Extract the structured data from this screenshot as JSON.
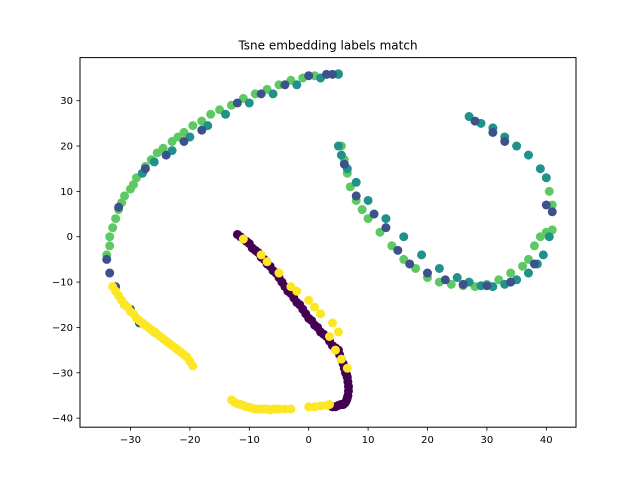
{
  "chart_data": {
    "type": "scatter",
    "title": "Tsne embedding labels match",
    "xlabel": "",
    "ylabel": "",
    "xlim": [
      -38.5,
      45
    ],
    "ylim": [
      -42,
      39.5
    ],
    "xticks": [
      -30,
      -20,
      -10,
      0,
      10,
      20,
      30,
      40
    ],
    "yticks": [
      -40,
      -30,
      -20,
      -10,
      0,
      10,
      20,
      30
    ],
    "xtick_labels": [
      "−30",
      "−20",
      "−10",
      "0",
      "10",
      "20",
      "30",
      "40"
    ],
    "ytick_labels": [
      "−40",
      "−30",
      "−20",
      "−10",
      "0",
      "10",
      "20",
      "30"
    ],
    "grid": false,
    "legend": "none",
    "colormap": "viridis",
    "colors": {
      "purple": "#440154",
      "indigo": "#3b528b",
      "teal": "#21918c",
      "green": "#5ec962",
      "yellow": "#fde725"
    },
    "series": [
      {
        "color": "#5ec962",
        "x": [
          -34,
          -33.5,
          -33.5,
          -33,
          -32.5,
          -32,
          -31.5,
          -31,
          -30,
          -29.5,
          -29,
          -28,
          -27.5,
          -26.5,
          -25.5,
          -24.5,
          -23,
          -22,
          -21,
          -19.5,
          -18,
          -16.5,
          -15,
          -13,
          -11,
          -9,
          -7,
          -5,
          -3,
          -1,
          1,
          3,
          5,
          5.5,
          6,
          6.5,
          7,
          8,
          9,
          10,
          12,
          14,
          16,
          18,
          20,
          22,
          24,
          26,
          28,
          30,
          32,
          34,
          36,
          37,
          38,
          39,
          40,
          41,
          41,
          40.5
        ],
        "y": [
          -4,
          -2,
          0,
          2,
          4,
          6,
          7.5,
          9,
          10.5,
          11.5,
          13,
          14,
          15.5,
          17,
          18.5,
          19.5,
          21,
          22,
          23,
          24.5,
          25.5,
          27,
          28,
          29,
          30.5,
          31.5,
          32.5,
          33.5,
          34.5,
          35,
          35.5,
          35.8,
          36,
          20,
          17,
          14,
          11,
          8,
          6,
          4,
          1,
          -2,
          -5,
          -7,
          -9,
          -10,
          -10.5,
          -10.8,
          -11,
          -10.5,
          -9.5,
          -8,
          -6.5,
          -5,
          -2,
          0,
          1,
          1.5,
          7,
          10
        ]
      },
      {
        "color": "#21918c",
        "x": [
          -28,
          -26,
          -23,
          -20,
          -17,
          -14,
          -10,
          -6,
          -2,
          2,
          5,
          5,
          5.5,
          6.5,
          8,
          10,
          13,
          16,
          19,
          22,
          25,
          27,
          29,
          31,
          33,
          35,
          37,
          38.5,
          39.5,
          40.5,
          40,
          39,
          37,
          35,
          33,
          31,
          29,
          27
        ],
        "y": [
          14,
          16.5,
          19,
          22,
          24.5,
          27,
          29.5,
          31.5,
          33.5,
          35,
          35.8,
          20,
          18,
          15,
          12,
          8,
          4,
          0,
          -4,
          -7,
          -9,
          -10,
          -10.8,
          -11,
          -10.5,
          -9.5,
          -8,
          -6,
          -4,
          0,
          13,
          15,
          18,
          20,
          22,
          24,
          25,
          26.5
        ]
      },
      {
        "color": "#3b528b",
        "x": [
          -34,
          -33.5,
          -32.5,
          -32,
          -31,
          -30,
          -28.5,
          -27.5,
          -26,
          -24,
          -21,
          -18,
          -12,
          -8,
          -4,
          0,
          3,
          4,
          6,
          8,
          11,
          13,
          15,
          17,
          20,
          23,
          26,
          30,
          34,
          38,
          40,
          41,
          33,
          31,
          28
        ],
        "y": [
          -5,
          -8,
          -11,
          6.5,
          -15,
          -16,
          -19,
          15,
          -21,
          18,
          21,
          23.5,
          29.5,
          31.5,
          33.5,
          35.5,
          35.8,
          35.8,
          16,
          9,
          5,
          2,
          -3,
          -6,
          -8,
          -9.5,
          -10.5,
          -10.8,
          -10,
          -6,
          7,
          5.5,
          21,
          23,
          25.5
        ]
      },
      {
        "color": "#440154",
        "x": [
          -12,
          -11.5,
          -11,
          -10.5,
          -10,
          -9.5,
          -9,
          -8.5,
          -8,
          -7.5,
          -7,
          -6.5,
          -6,
          -5.5,
          -5,
          -4.5,
          -4,
          -3.5,
          -3,
          -2.5,
          -2,
          -1.5,
          -1,
          -0.5,
          0,
          0.5,
          1,
          1.5,
          2,
          2.5,
          3,
          3.5,
          4,
          4.5,
          5,
          5.2,
          5.5,
          5.8,
          6,
          6.2,
          6.4,
          6.5,
          6.6,
          6.7,
          6.7,
          6.6,
          6.5,
          6.4,
          6.2,
          6,
          5.8,
          5.6,
          5.4,
          5,
          4.5,
          4
        ],
        "y": [
          0.5,
          0,
          -0.5,
          -1,
          -1.5,
          -2.5,
          -3,
          -3.5,
          -4.5,
          -5,
          -6,
          -6.5,
          -7.5,
          -8,
          -9,
          -10,
          -11,
          -12,
          -12.5,
          -13.5,
          -14.5,
          -15,
          -16,
          -17,
          -18,
          -18.5,
          -19.5,
          -20,
          -21,
          -21.5,
          -22,
          -23,
          -24,
          -24.5,
          -25,
          -26,
          -27,
          -28,
          -29,
          -30,
          -30.5,
          -31,
          -32,
          -33,
          -34,
          -35,
          -35.5,
          -36,
          -36.5,
          -36.8,
          -37,
          -37,
          -37,
          -37.2,
          -37.5,
          -37.5
        ]
      },
      {
        "color": "#fde725",
        "x": [
          -33,
          -32.5,
          -32,
          -31.5,
          -31,
          -30.5,
          -30,
          -29.5,
          -29,
          -28.5,
          -28,
          -27.5,
          -27,
          -26.5,
          -26,
          -25.5,
          -25,
          -24.5,
          -24,
          -23.5,
          -23,
          -22.5,
          -22,
          -21.5,
          -21,
          -20.5,
          -20,
          -19.5,
          -13,
          -12.5,
          -12,
          -11.5,
          -11,
          -10.5,
          -10,
          -9.5,
          -9,
          -8.5,
          -8,
          -7.5,
          -7,
          -6.5,
          -6,
          -5.5,
          -5,
          -4,
          -3,
          0,
          1,
          2,
          3,
          3.5,
          -11,
          -8,
          -7,
          -5,
          -3,
          -2,
          0,
          1,
          2,
          3.5,
          4.5,
          5.5,
          6.5,
          5,
          4
        ],
        "y": [
          -11,
          -12,
          -13,
          -14,
          -15,
          -15.5,
          -16.5,
          -17,
          -18,
          -18.5,
          -19,
          -19.5,
          -20,
          -20.5,
          -21,
          -21.5,
          -22,
          -22.5,
          -23,
          -23.5,
          -24,
          -24.5,
          -25,
          -25.5,
          -26,
          -26.5,
          -27.5,
          -28.5,
          -36,
          -36.5,
          -36.8,
          -37,
          -37.2,
          -37.5,
          -37.6,
          -37.8,
          -38,
          -38,
          -38,
          -38,
          -38,
          -38.2,
          -38,
          -38,
          -38,
          -38,
          -38,
          -37.5,
          -37.5,
          -37.3,
          -37.2,
          -37,
          -0.5,
          -4,
          -5.5,
          -8,
          -11,
          -12,
          -14,
          -15.5,
          -17,
          -22,
          -25,
          -27,
          -29,
          -21,
          -19
        ]
      }
    ]
  }
}
